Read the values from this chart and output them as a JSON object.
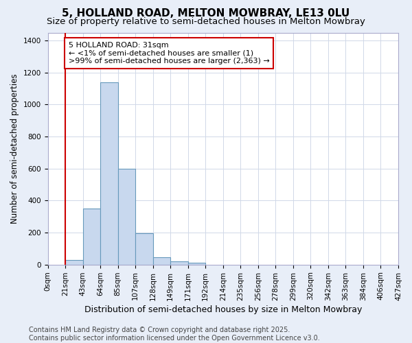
{
  "title": "5, HOLLAND ROAD, MELTON MOWBRAY, LE13 0LU",
  "subtitle": "Size of property relative to semi-detached houses in Melton Mowbray",
  "xlabel": "Distribution of semi-detached houses by size in Melton Mowbray",
  "ylabel": "Number of semi-detached properties",
  "footer": "Contains HM Land Registry data © Crown copyright and database right 2025.\nContains public sector information licensed under the Open Government Licence v3.0.",
  "bin_labels": [
    "0sqm",
    "21sqm",
    "43sqm",
    "64sqm",
    "85sqm",
    "107sqm",
    "128sqm",
    "149sqm",
    "171sqm",
    "192sqm",
    "214sqm",
    "235sqm",
    "256sqm",
    "278sqm",
    "299sqm",
    "320sqm",
    "342sqm",
    "363sqm",
    "384sqm",
    "406sqm",
    "427sqm"
  ],
  "bar_values": [
    0,
    30,
    350,
    1140,
    600,
    195,
    45,
    20,
    10,
    0,
    0,
    0,
    0,
    0,
    0,
    0,
    0,
    0,
    0,
    0
  ],
  "bar_color": "#c8d8ee",
  "bar_edge_color": "#6699bb",
  "annotation_text": "5 HOLLAND ROAD: 31sqm\n← <1% of semi-detached houses are smaller (1)\n>99% of semi-detached houses are larger (2,363) →",
  "annotation_box_color": "#ffffff",
  "annotation_box_edge": "#cc0000",
  "property_line_x": 21,
  "property_line_color": "#cc0000",
  "grid_color": "#d0d8e8",
  "plot_bg_color": "#ffffff",
  "figure_bg_color": "#e8eef8",
  "ylim": [
    0,
    1450
  ],
  "xlim_max": 427,
  "bin_width": 21,
  "title_fontsize": 11,
  "subtitle_fontsize": 9.5,
  "xlabel_fontsize": 9,
  "ylabel_fontsize": 8.5,
  "tick_fontsize": 7.5,
  "footer_fontsize": 7,
  "annot_fontsize": 8
}
